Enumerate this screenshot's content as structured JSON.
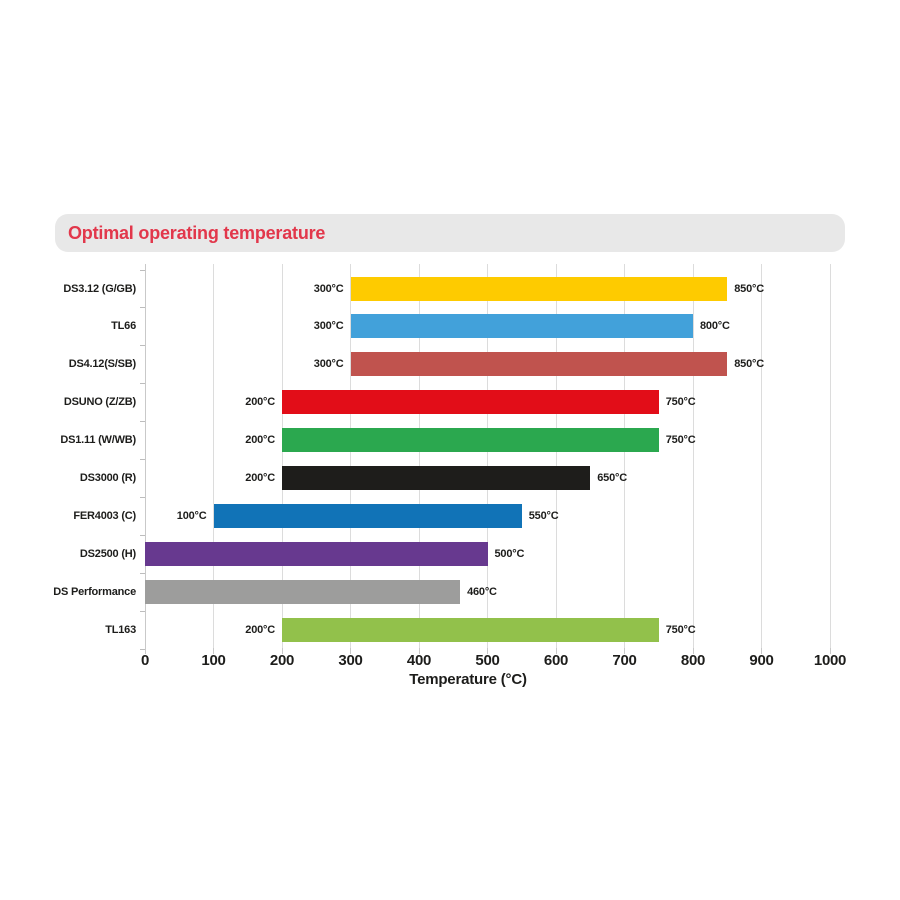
{
  "banner": {
    "title": "Optimal operating temperature"
  },
  "chart_data": {
    "type": "bar",
    "orientation": "horizontal",
    "title": "Optimal operating temperature",
    "xlabel": "Temperature (°C)",
    "ylabel": "",
    "xlim": [
      0,
      1000
    ],
    "xticks": [
      "0",
      "100",
      "200",
      "300",
      "400",
      "500",
      "600",
      "700",
      "800",
      "900",
      "1000"
    ],
    "grid": true,
    "legend": false,
    "bars": [
      {
        "category": "DS3.12 (G/GB)",
        "range": [
          300,
          850
        ],
        "start_label": "300°C",
        "end_label": "850°C",
        "color": "#fecb00"
      },
      {
        "category": "TL66",
        "range": [
          300,
          800
        ],
        "start_label": "300°C",
        "end_label": "800°C",
        "color": "#42a1da"
      },
      {
        "category": "DS4.12(S/SB)",
        "range": [
          300,
          850
        ],
        "start_label": "300°C",
        "end_label": "850°C",
        "color": "#c0534e"
      },
      {
        "category": "DSUNO (Z/ZB)",
        "range": [
          200,
          750
        ],
        "start_label": "200°C",
        "end_label": "750°C",
        "color": "#e20d18"
      },
      {
        "category": "DS1.11 (W/WB)",
        "range": [
          200,
          750
        ],
        "start_label": "200°C",
        "end_label": "750°C",
        "color": "#2ba84f"
      },
      {
        "category": "DS3000 (R)",
        "range": [
          200,
          650
        ],
        "start_label": "200°C",
        "end_label": "650°C",
        "color": "#1e1d1b"
      },
      {
        "category": "FER4003 (C)",
        "range": [
          100,
          550
        ],
        "start_label": "100°C",
        "end_label": "550°C",
        "color": "#1173b7"
      },
      {
        "category": "DS2500 (H)",
        "range": [
          0,
          500
        ],
        "start_label": "",
        "end_label": "500°C",
        "color": "#67398f"
      },
      {
        "category": "DS Performance",
        "range": [
          0,
          460
        ],
        "start_label": "",
        "end_label": "460°C",
        "color": "#9d9d9c"
      },
      {
        "category": "TL163",
        "range": [
          200,
          750
        ],
        "start_label": "200°C",
        "end_label": "750°C",
        "color": "#92c14b"
      }
    ]
  },
  "colors": {
    "title_text": "#e2374b",
    "banner_bg": "#e8e8e8",
    "label_text": "#1d1d1b",
    "gridline": "#dcdcdc",
    "axis_line": "#c9c9c9",
    "background": "#ffffff"
  }
}
